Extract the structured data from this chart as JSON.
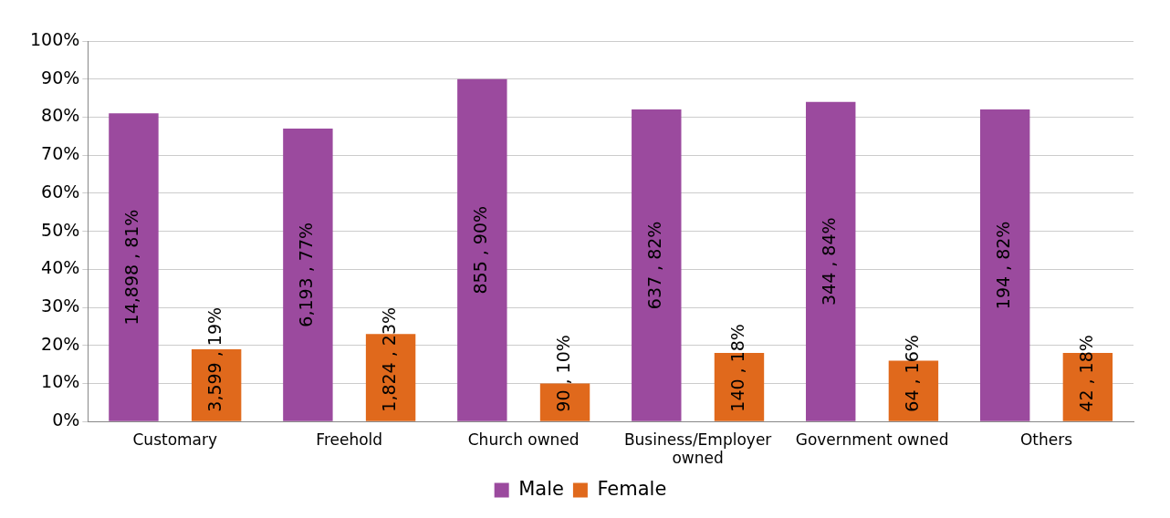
{
  "chart_data": {
    "type": "bar",
    "categories": [
      "Customary",
      "Freehold",
      "Church owned",
      "Business/Employer owned",
      "Government owned",
      "Others"
    ],
    "series": [
      {
        "name": "Male",
        "color": "#9b4a9e",
        "values": [
          81,
          77,
          90,
          82,
          84,
          82
        ],
        "value_labels": [
          "14,898 , 81%",
          "6,193 , 77%",
          "855 , 90%",
          "637 , 82%",
          "344 , 84%",
          "194 , 82%"
        ]
      },
      {
        "name": "Female",
        "color": "#e0691c",
        "values": [
          19,
          23,
          10,
          18,
          16,
          18
        ],
        "value_labels": [
          "3,599 , 19%",
          "1,824 , 23%",
          "90 , 10%",
          "140 , 18%",
          "64 , 16%",
          "42 , 18%"
        ]
      }
    ],
    "ylim": [
      0,
      100
    ],
    "yticks": [
      {
        "value": 0,
        "label": "0%"
      },
      {
        "value": 10,
        "label": "10%"
      },
      {
        "value": 20,
        "label": "20%"
      },
      {
        "value": 30,
        "label": "30%"
      },
      {
        "value": 40,
        "label": "40%"
      },
      {
        "value": 50,
        "label": "50%"
      },
      {
        "value": 60,
        "label": "60%"
      },
      {
        "value": 70,
        "label": "70%"
      },
      {
        "value": 80,
        "label": "80%"
      },
      {
        "value": 90,
        "label": "90%"
      },
      {
        "value": 100,
        "label": "100%"
      }
    ],
    "grid": "y",
    "legend": "bottom"
  }
}
